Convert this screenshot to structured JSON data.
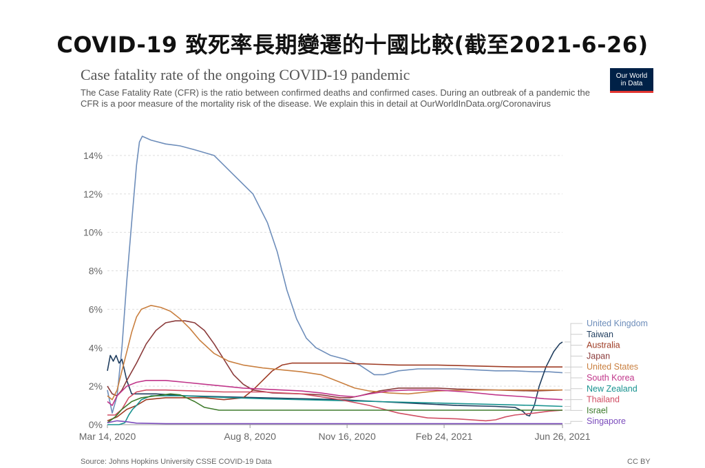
{
  "headline": "COVID-19 致死率長期變遷的十國比較(截至2021-6-26)",
  "logo": {
    "line1": "Our World",
    "line2": "in Data"
  },
  "footer": {
    "source": "Source: Johns Hopkins University CSSE COVID-19 Data",
    "license": "CC BY"
  },
  "chart_data": {
    "type": "line",
    "title": "Case fatality rate of the ongoing COVID-19 pandemic",
    "subtitle": "The Case Fatality Rate (CFR) is the ratio between confirmed deaths and confirmed cases. During an outbreak of a pandemic the CFR is a poor measure of the mortality risk of the disease. We explain this in detail at OurWorldInData.org/Coronavirus",
    "xlabel": "",
    "ylabel": "",
    "x_unit": "days since Mar 14, 2020",
    "xlim": [
      0,
      469
    ],
    "ylim": [
      0,
      15
    ],
    "grid": true,
    "y_ticks": [
      {
        "value": 0,
        "label": "0%"
      },
      {
        "value": 2,
        "label": "2%"
      },
      {
        "value": 4,
        "label": "4%"
      },
      {
        "value": 6,
        "label": "6%"
      },
      {
        "value": 8,
        "label": "8%"
      },
      {
        "value": 10,
        "label": "10%"
      },
      {
        "value": 12,
        "label": "12%"
      },
      {
        "value": 14,
        "label": "14%"
      }
    ],
    "x_ticks": [
      {
        "value": 0,
        "label": "Mar 14, 2020"
      },
      {
        "value": 147,
        "label": "Aug 8, 2020"
      },
      {
        "value": 247,
        "label": "Nov 16, 2020"
      },
      {
        "value": 347,
        "label": "Feb 24, 2021"
      },
      {
        "value": 469,
        "label": "Jun 26, 2021"
      }
    ],
    "series": [
      {
        "name": "United Kingdom",
        "color": "#6d8dba",
        "points": [
          [
            0,
            1.8
          ],
          [
            5,
            0.6
          ],
          [
            10,
            1.5
          ],
          [
            15,
            4.0
          ],
          [
            20,
            7.5
          ],
          [
            25,
            10.5
          ],
          [
            30,
            13.5
          ],
          [
            33,
            14.7
          ],
          [
            36,
            15.0
          ],
          [
            45,
            14.8
          ],
          [
            60,
            14.6
          ],
          [
            75,
            14.5
          ],
          [
            90,
            14.3
          ],
          [
            110,
            14.0
          ],
          [
            130,
            13.0
          ],
          [
            150,
            12.0
          ],
          [
            165,
            10.5
          ],
          [
            175,
            9.0
          ],
          [
            185,
            7.0
          ],
          [
            195,
            5.5
          ],
          [
            205,
            4.5
          ],
          [
            215,
            4.0
          ],
          [
            230,
            3.6
          ],
          [
            245,
            3.4
          ],
          [
            260,
            3.1
          ],
          [
            275,
            2.6
          ],
          [
            285,
            2.6
          ],
          [
            300,
            2.8
          ],
          [
            320,
            2.9
          ],
          [
            340,
            2.9
          ],
          [
            360,
            2.9
          ],
          [
            380,
            2.85
          ],
          [
            400,
            2.8
          ],
          [
            420,
            2.8
          ],
          [
            440,
            2.75
          ],
          [
            455,
            2.75
          ],
          [
            469,
            2.7
          ]
        ]
      },
      {
        "name": "Taiwan",
        "color": "#1f3d5e",
        "points": [
          [
            0,
            2.8
          ],
          [
            3,
            3.6
          ],
          [
            6,
            3.3
          ],
          [
            9,
            3.6
          ],
          [
            12,
            3.2
          ],
          [
            15,
            3.4
          ],
          [
            20,
            2.3
          ],
          [
            25,
            1.6
          ],
          [
            35,
            1.6
          ],
          [
            50,
            1.6
          ],
          [
            80,
            1.5
          ],
          [
            120,
            1.45
          ],
          [
            160,
            1.4
          ],
          [
            200,
            1.35
          ],
          [
            240,
            1.3
          ],
          [
            280,
            1.2
          ],
          [
            320,
            1.1
          ],
          [
            360,
            1.0
          ],
          [
            400,
            0.95
          ],
          [
            420,
            0.9
          ],
          [
            428,
            0.7
          ],
          [
            432,
            0.5
          ],
          [
            435,
            0.45
          ],
          [
            440,
            1.0
          ],
          [
            445,
            2.0
          ],
          [
            452,
            3.0
          ],
          [
            460,
            3.8
          ],
          [
            466,
            4.2
          ],
          [
            469,
            4.3
          ]
        ]
      },
      {
        "name": "Australia",
        "color": "#9e3b24",
        "points": [
          [
            0,
            0.2
          ],
          [
            10,
            0.4
          ],
          [
            20,
            0.8
          ],
          [
            30,
            1.0
          ],
          [
            40,
            1.3
          ],
          [
            60,
            1.4
          ],
          [
            80,
            1.4
          ],
          [
            100,
            1.4
          ],
          [
            120,
            1.3
          ],
          [
            140,
            1.4
          ],
          [
            150,
            1.8
          ],
          [
            160,
            2.3
          ],
          [
            170,
            2.8
          ],
          [
            180,
            3.1
          ],
          [
            190,
            3.2
          ],
          [
            210,
            3.2
          ],
          [
            240,
            3.2
          ],
          [
            270,
            3.15
          ],
          [
            300,
            3.1
          ],
          [
            340,
            3.1
          ],
          [
            380,
            3.05
          ],
          [
            420,
            3.0
          ],
          [
            450,
            3.0
          ],
          [
            469,
            3.0
          ]
        ]
      },
      {
        "name": "Japan",
        "color": "#8a3a3a",
        "points": [
          [
            0,
            2.0
          ],
          [
            5,
            1.6
          ],
          [
            10,
            1.5
          ],
          [
            15,
            1.8
          ],
          [
            20,
            2.3
          ],
          [
            30,
            3.2
          ],
          [
            40,
            4.2
          ],
          [
            50,
            4.9
          ],
          [
            60,
            5.3
          ],
          [
            70,
            5.4
          ],
          [
            80,
            5.4
          ],
          [
            90,
            5.3
          ],
          [
            100,
            4.9
          ],
          [
            110,
            4.2
          ],
          [
            120,
            3.4
          ],
          [
            130,
            2.6
          ],
          [
            140,
            2.1
          ],
          [
            150,
            1.8
          ],
          [
            170,
            1.65
          ],
          [
            200,
            1.6
          ],
          [
            220,
            1.55
          ],
          [
            240,
            1.4
          ],
          [
            250,
            1.4
          ],
          [
            260,
            1.5
          ],
          [
            280,
            1.75
          ],
          [
            300,
            1.9
          ],
          [
            320,
            1.9
          ],
          [
            340,
            1.9
          ],
          [
            360,
            1.85
          ],
          [
            400,
            1.8
          ],
          [
            440,
            1.75
          ],
          [
            469,
            1.8
          ]
        ]
      },
      {
        "name": "United States",
        "color": "#c97f3f",
        "points": [
          [
            0,
            1.5
          ],
          [
            5,
            1.3
          ],
          [
            10,
            1.8
          ],
          [
            15,
            2.8
          ],
          [
            20,
            3.8
          ],
          [
            25,
            4.8
          ],
          [
            30,
            5.6
          ],
          [
            35,
            6.0
          ],
          [
            45,
            6.2
          ],
          [
            55,
            6.1
          ],
          [
            65,
            5.9
          ],
          [
            75,
            5.5
          ],
          [
            85,
            5.0
          ],
          [
            95,
            4.4
          ],
          [
            110,
            3.7
          ],
          [
            125,
            3.3
          ],
          [
            140,
            3.1
          ],
          [
            160,
            2.95
          ],
          [
            180,
            2.85
          ],
          [
            200,
            2.75
          ],
          [
            220,
            2.6
          ],
          [
            240,
            2.2
          ],
          [
            255,
            1.9
          ],
          [
            270,
            1.75
          ],
          [
            290,
            1.65
          ],
          [
            310,
            1.6
          ],
          [
            340,
            1.75
          ],
          [
            370,
            1.8
          ],
          [
            400,
            1.8
          ],
          [
            430,
            1.8
          ],
          [
            469,
            1.8
          ]
        ]
      },
      {
        "name": "South Korea",
        "color": "#c0358a",
        "points": [
          [
            0,
            1.2
          ],
          [
            5,
            1.0
          ],
          [
            10,
            1.5
          ],
          [
            20,
            2.0
          ],
          [
            30,
            2.2
          ],
          [
            40,
            2.3
          ],
          [
            60,
            2.3
          ],
          [
            80,
            2.2
          ],
          [
            100,
            2.1
          ],
          [
            120,
            2.0
          ],
          [
            140,
            1.9
          ],
          [
            160,
            1.85
          ],
          [
            180,
            1.8
          ],
          [
            200,
            1.75
          ],
          [
            220,
            1.65
          ],
          [
            240,
            1.5
          ],
          [
            255,
            1.45
          ],
          [
            270,
            1.6
          ],
          [
            290,
            1.75
          ],
          [
            310,
            1.8
          ],
          [
            340,
            1.8
          ],
          [
            370,
            1.7
          ],
          [
            400,
            1.55
          ],
          [
            430,
            1.45
          ],
          [
            450,
            1.35
          ],
          [
            469,
            1.3
          ]
        ]
      },
      {
        "name": "New Zealand",
        "color": "#17928f",
        "points": [
          [
            0,
            0.0
          ],
          [
            12,
            0.0
          ],
          [
            18,
            0.1
          ],
          [
            22,
            0.5
          ],
          [
            26,
            0.8
          ],
          [
            30,
            1.0
          ],
          [
            35,
            1.3
          ],
          [
            45,
            1.5
          ],
          [
            60,
            1.5
          ],
          [
            80,
            1.5
          ],
          [
            100,
            1.45
          ],
          [
            130,
            1.4
          ],
          [
            160,
            1.35
          ],
          [
            200,
            1.3
          ],
          [
            240,
            1.25
          ],
          [
            280,
            1.2
          ],
          [
            320,
            1.15
          ],
          [
            360,
            1.1
          ],
          [
            400,
            1.05
          ],
          [
            440,
            1.0
          ],
          [
            469,
            0.95
          ]
        ]
      },
      {
        "name": "Thailand",
        "color": "#d04d63",
        "points": [
          [
            0,
            0.5
          ],
          [
            8,
            0.5
          ],
          [
            15,
            0.8
          ],
          [
            22,
            1.4
          ],
          [
            30,
            1.7
          ],
          [
            40,
            1.8
          ],
          [
            60,
            1.8
          ],
          [
            90,
            1.75
          ],
          [
            120,
            1.7
          ],
          [
            160,
            1.7
          ],
          [
            200,
            1.6
          ],
          [
            240,
            1.3
          ],
          [
            270,
            1.0
          ],
          [
            300,
            0.6
          ],
          [
            330,
            0.35
          ],
          [
            360,
            0.3
          ],
          [
            390,
            0.2
          ],
          [
            400,
            0.25
          ],
          [
            410,
            0.4
          ],
          [
            420,
            0.5
          ],
          [
            440,
            0.6
          ],
          [
            455,
            0.7
          ],
          [
            469,
            0.75
          ]
        ]
      },
      {
        "name": "Israel",
        "color": "#3d7a2a",
        "points": [
          [
            0,
            0.1
          ],
          [
            8,
            0.4
          ],
          [
            15,
            0.8
          ],
          [
            25,
            1.2
          ],
          [
            35,
            1.4
          ],
          [
            50,
            1.5
          ],
          [
            65,
            1.6
          ],
          [
            75,
            1.55
          ],
          [
            90,
            1.2
          ],
          [
            100,
            0.9
          ],
          [
            115,
            0.75
          ],
          [
            135,
            0.75
          ],
          [
            170,
            0.75
          ],
          [
            210,
            0.75
          ],
          [
            250,
            0.75
          ],
          [
            290,
            0.75
          ],
          [
            330,
            0.75
          ],
          [
            370,
            0.75
          ],
          [
            410,
            0.75
          ],
          [
            440,
            0.75
          ],
          [
            469,
            0.75
          ]
        ]
      },
      {
        "name": "Singapore",
        "color": "#7b4cbc",
        "points": [
          [
            0,
            0.1
          ],
          [
            10,
            0.2
          ],
          [
            20,
            0.15
          ],
          [
            30,
            0.08
          ],
          [
            60,
            0.05
          ],
          [
            100,
            0.05
          ],
          [
            150,
            0.05
          ],
          [
            200,
            0.05
          ],
          [
            250,
            0.05
          ],
          [
            300,
            0.05
          ],
          [
            350,
            0.05
          ],
          [
            400,
            0.05
          ],
          [
            440,
            0.05
          ],
          [
            469,
            0.05
          ]
        ]
      }
    ]
  }
}
